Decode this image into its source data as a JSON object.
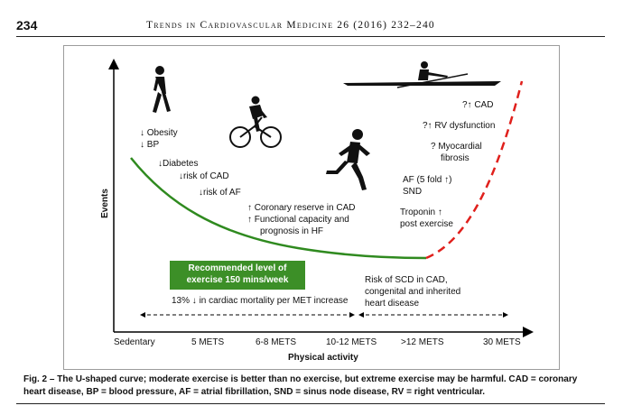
{
  "header": {
    "page_number": "234",
    "running_head": "Trends in Cardiovascular Medicine 26 (2016) 232–240"
  },
  "figure": {
    "y_axis_title": "Events",
    "x_axis_title": "Physical activity",
    "x_ticks": [
      "Sedentary",
      "5 METS",
      "6-8 METS",
      "10-12 METS",
      ">12 METS",
      "30 METS"
    ],
    "benefit_labels": {
      "obesity": "↓ Obesity",
      "bp": "↓ BP",
      "diabetes": "↓Diabetes",
      "cad": "↓risk of CAD",
      "af": "↓risk of AF",
      "coronary": "↑ Coronary reserve  in CAD",
      "functional1": "↑ Functional capacity and",
      "functional2": "prognosis in HF"
    },
    "risk_labels": {
      "cad": "?↑ CAD",
      "rv": "?↑ RV dysfunction",
      "myo1": "? Myocardial",
      "myo2": "fibrosis",
      "af1": "AF (5 fold ↑)",
      "af2": "SND",
      "trop1": "Troponin ↑",
      "trop2": "post exercise"
    },
    "recommended_box": [
      "Recommended level of",
      "exercise 150 mins/week"
    ],
    "mortality_note": "13% ↓ in cardiac mortality per MET increase",
    "scd_note": [
      "Risk of SCD in CAD,",
      "congenital and inherited",
      "heart disease"
    ],
    "curve_colors": {
      "beneficial": "#2f8a1f",
      "harmful": "#e0201c",
      "box": "#3c8f27"
    },
    "icons": [
      "walker-silhouette-icon",
      "cyclist-silhouette-icon",
      "runner-silhouette-icon",
      "rower-silhouette-icon"
    ]
  },
  "caption": "Fig. 2 – The U-shaped curve; moderate exercise is better than no exercise, but extreme exercise may be harmful. CAD = coronary heart disease, BP = blood pressure, AF = atrial fibrillation, SND = sinus node disease, RV = right ventricular."
}
